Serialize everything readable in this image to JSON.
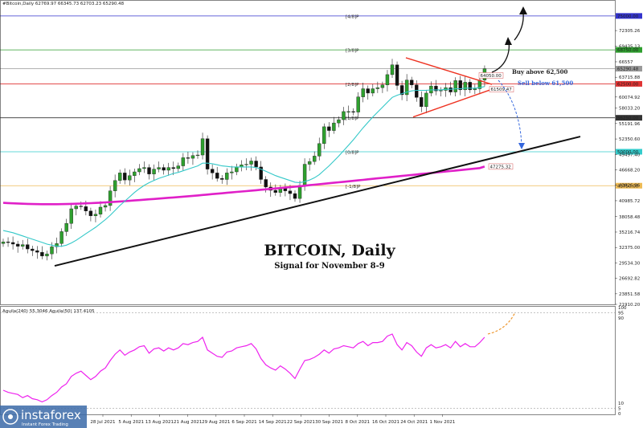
{
  "header": {
    "symbol_line": "#Bitcoin,Daily  62769.97 66345.73 62703.23 65290.48",
    "oscillator_line": "Aguila(240) 55.3046   Aguila(50) 137.4105"
  },
  "title": "BITCOIN, Daily",
  "subtitle": "Signal for November 8-9",
  "annotations": {
    "buy": "Buy above 62,500",
    "sell": "Sell below 61,500"
  },
  "colors": {
    "bull": "#2ea02e",
    "bear": "#111111",
    "ma_slow": "#e020c8",
    "ma_fast": "#33c8c8",
    "triangle": "#ee3322",
    "trend": "#111111",
    "oscillator": "#ee22ee",
    "forecast": "#ee9933",
    "buy_text": "#222222",
    "sell_text": "#3366dd"
  },
  "logo": {
    "name": "instaforex",
    "tagline": "Instant Forex Trading"
  },
  "chart_data": {
    "type": "candlestick",
    "price_axis": {
      "ylim": [
        21910.2,
        76900
      ],
      "ticks": [
        "72305.26",
        "69435.13",
        "66557",
        "63715.88",
        "60074.92",
        "58033.20",
        "55191.96",
        "52350.60",
        "49497.40",
        "46668.20",
        "43826.96",
        "40985.72",
        "38058.48",
        "35216.74",
        "32375.00",
        "29534.30",
        "26692.82",
        "23851.58",
        "21910.20"
      ]
    },
    "levels": [
      {
        "label": "[4/8]P",
        "price": 75000,
        "tag": "75000.00",
        "color": "#3333cc"
      },
      {
        "label": "[3/8]P",
        "price": 68750,
        "tag": "68750.00",
        "color": "#2e9e2e"
      },
      {
        "label": "",
        "price": 65290.48,
        "tag": "65290.48",
        "color": "#999999"
      },
      {
        "label": "[2/8]P",
        "price": 62500,
        "tag": "62500.00",
        "color": "#e03333"
      },
      {
        "label": "[1/8]P",
        "price": 56250,
        "tag": "56250.00",
        "color": "#333333"
      },
      {
        "label": "[0/8]P",
        "price": 50000,
        "tag": "50000.00",
        "color": "#33cccc"
      },
      {
        "label": "[-1/8]P",
        "price": 43750,
        "tag": "43750.00",
        "color": "#eebb55"
      }
    ],
    "point_labels": [
      {
        "price": 61509.47,
        "text": "61509.47"
      },
      {
        "price": 47275.32,
        "text": "47275.32"
      },
      {
        "price": 64050,
        "text": "64050.00"
      }
    ],
    "date_axis": [
      "28 Jul 2021",
      "5 Aug 2021",
      "13 Aug 2021",
      "21 Aug 2021",
      "29 Aug 2021",
      "6 Sep 2021",
      "14 Sep 2021",
      "22 Sep 2021",
      "30 Sep 2021",
      "8 Oct 2021",
      "16 Oct 2021",
      "24 Oct 2021",
      "1 Nov 2021"
    ],
    "closes": [
      33400,
      33300,
      33000,
      32600,
      32900,
      32100,
      31800,
      31500,
      30800,
      31200,
      32500,
      33100,
      35300,
      36800,
      39500,
      40000,
      39900,
      39100,
      38200,
      38500,
      39800,
      40100,
      42800,
      44700,
      46100,
      44800,
      45600,
      46300,
      46900,
      47100,
      45900,
      46800,
      47100,
      46600,
      47100,
      46900,
      47400,
      48900,
      48800,
      49300,
      49400,
      52400,
      46800,
      46100,
      45100,
      44900,
      46100,
      46300,
      47200,
      47600,
      47700,
      48300,
      47200,
      44900,
      43500,
      42900,
      42500,
      43300,
      42800,
      42300,
      41400,
      43800,
      47700,
      48200,
      49200,
      51500,
      54600,
      53900,
      55300,
      55900,
      57400,
      57400,
      57300,
      60100,
      61600,
      60800,
      61600,
      61800,
      62300,
      64200,
      66000,
      62200,
      60500,
      63200,
      62300,
      60000,
      58300,
      60800,
      62100,
      61200,
      61300,
      61800,
      61000,
      63100,
      61400,
      62800,
      61400,
      61600,
      63200,
      65290
    ],
    "ma_fast": [
      35500,
      35300,
      35100,
      34800,
      34500,
      34200,
      33900,
      33600,
      33300,
      33000,
      32800,
      32600,
      32600,
      32800,
      33200,
      33700,
      34300,
      34900,
      35500,
      36100,
      36800,
      37500,
      38300,
      39200,
      40100,
      40900,
      41700,
      42500,
      43200,
      43800,
      44300,
      44700,
      45100,
      45400,
      45700,
      46000,
      46200,
      46500,
      46800,
      47100,
      47400,
      47900,
      47900,
      47800,
      47600,
      47400,
      47300,
      47200,
      47200,
      47200,
      47200,
      47200,
      47100,
      46800,
      46400,
      46000,
      45600,
      45300,
      45000,
      44700,
      44400,
      44300,
      44500,
      44800,
      45200,
      45800,
      46600,
      47400,
      48300,
      49200,
      50200,
      51200,
      52200,
      53300,
      54400,
      55400,
      56400,
      57300,
      58200,
      59100,
      60000,
      60400,
      60700,
      61000,
      61200,
      61300,
      61300,
      61300,
      61400,
      61400,
      61400,
      61500,
      61500,
      61600,
      61600,
      61700,
      61700,
      61700,
      61800,
      62000
    ],
    "ma_slow": [
      40600,
      40550,
      40500,
      40470,
      40430,
      40400,
      40380,
      40360,
      40350,
      40340,
      40340,
      40350,
      40360,
      40380,
      40400,
      40430,
      40460,
      40500,
      40540,
      40580,
      40630,
      40680,
      40730,
      40790,
      40850,
      40910,
      40970,
      41040,
      41100,
      41170,
      41240,
      41310,
      41380,
      41450,
      41520,
      41590,
      41660,
      41730,
      41800,
      41880,
      41960,
      42040,
      42120,
      42200,
      42280,
      42360,
      42440,
      42520,
      42600,
      42680,
      42760,
      42840,
      42920,
      43000,
      43080,
      43160,
      43240,
      43320,
      43400,
      43480,
      43570,
      43660,
      43750,
      43840,
      43930,
      44020,
      44110,
      44200,
      44290,
      44380,
      44470,
      44560,
      44650,
      44740,
      44830,
      44920,
      45010,
      45100,
      45190,
      45280,
      45370,
      45460,
      45550,
      45640,
      45730,
      45820,
      45910,
      46000,
      46090,
      46180,
      46270,
      46360,
      46450,
      46540,
      46630,
      46720,
      46810,
      46900,
      47000,
      47275
    ],
    "oscillator": {
      "ylim": [
        0,
        100
      ],
      "ticks": [
        "100",
        "95",
        "90",
        "10",
        "5",
        "0"
      ],
      "values": [
        22,
        20,
        19,
        18,
        15,
        17,
        14,
        13,
        11,
        13,
        17,
        20,
        25,
        28,
        35,
        38,
        40,
        36,
        32,
        35,
        40,
        43,
        50,
        56,
        60,
        55,
        58,
        60,
        63,
        64,
        57,
        61,
        62,
        59,
        62,
        60,
        62,
        66,
        65,
        67,
        68,
        72,
        60,
        57,
        54,
        53,
        58,
        59,
        62,
        63,
        64,
        66,
        61,
        52,
        46,
        43,
        41,
        45,
        42,
        38,
        33,
        42,
        50,
        51,
        53,
        56,
        60,
        57,
        61,
        62,
        64,
        63,
        62,
        66,
        68,
        64,
        67,
        67,
        68,
        73,
        75,
        65,
        60,
        67,
        64,
        58,
        54,
        62,
        65,
        62,
        63,
        65,
        62,
        68,
        63,
        66,
        63,
        63,
        67,
        72
      ],
      "forecast_to": 97
    }
  }
}
